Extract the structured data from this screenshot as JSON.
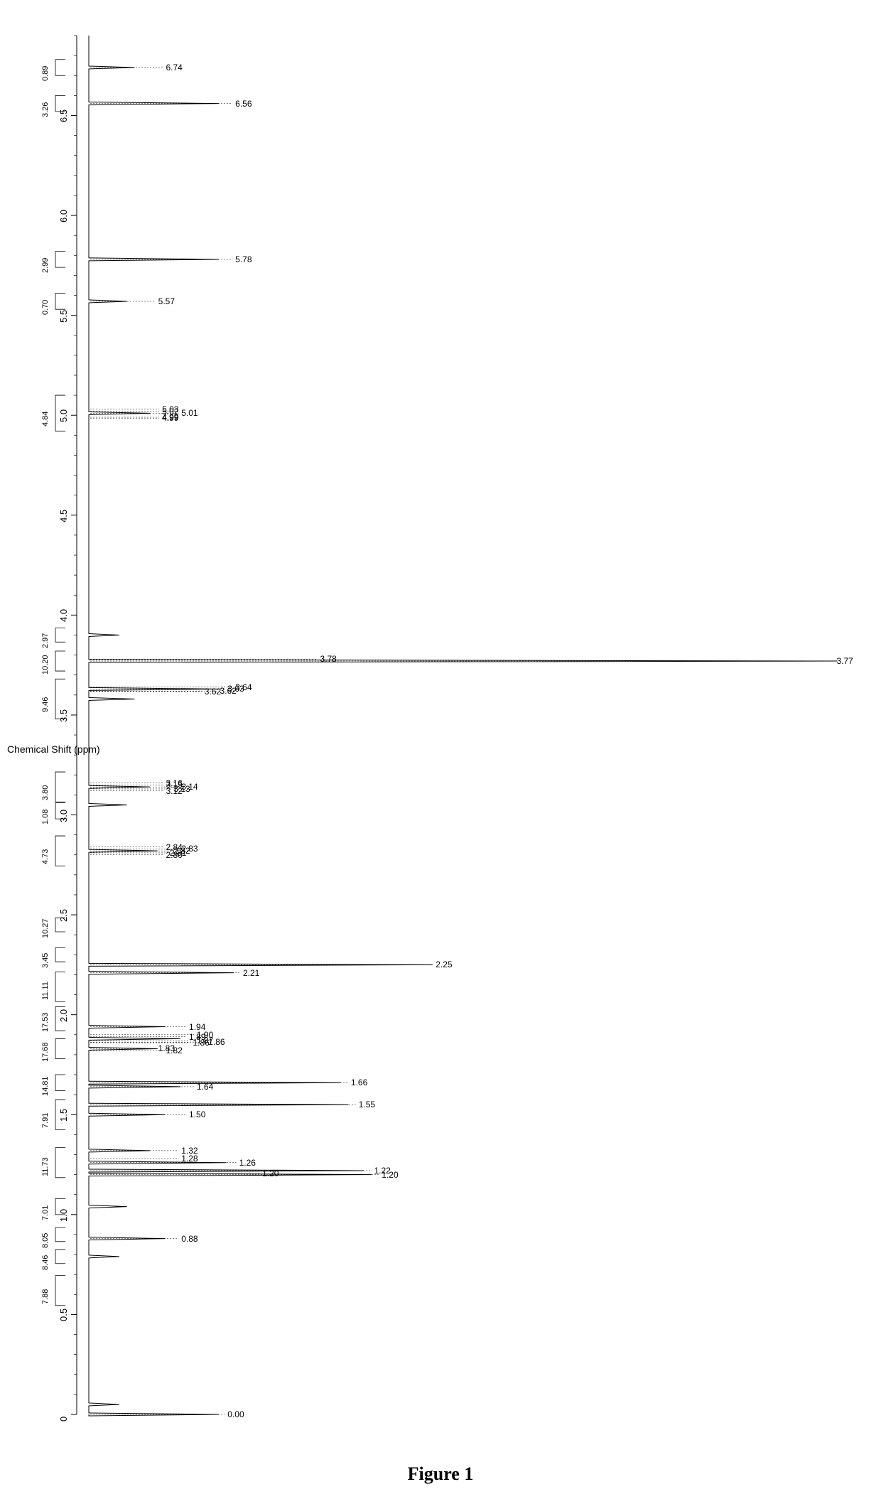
{
  "figure_caption": "Figure 1",
  "axis": {
    "label": "Chemical Shift (ppm)",
    "min": 0,
    "max": 6.9,
    "major_step": 0.5,
    "ticks": [
      0,
      0.5,
      1.0,
      1.5,
      2.0,
      2.5,
      3.0,
      3.5,
      4.0,
      4.5,
      5.0,
      5.5,
      6.0,
      6.5
    ],
    "color": "#000000"
  },
  "style": {
    "background": "#ffffff",
    "line_color": "#000000",
    "text_color": "#000000",
    "integral_fontsize": 11,
    "peaklabel_fontsize": 12,
    "axis_fontsize": 13,
    "caption_fontsize": 26
  },
  "peak_labels": [
    {
      "ppm": 6.74,
      "text": "6.74",
      "rel_x": 0.1
    },
    {
      "ppm": 6.56,
      "text": "6.56",
      "rel_x": 0.19
    },
    {
      "ppm": 5.78,
      "text": "5.78",
      "rel_x": 0.19
    },
    {
      "ppm": 5.57,
      "text": "5.57",
      "rel_x": 0.09
    },
    {
      "ppm": 5.03,
      "text": "5.03",
      "rel_x": 0.095
    },
    {
      "ppm": 5.02,
      "text": "5.02",
      "rel_x": 0.095
    },
    {
      "ppm": 5.01,
      "text": "5.01",
      "rel_x": 0.12
    },
    {
      "ppm": 4.99,
      "text": "4.99",
      "rel_x": 0.095
    },
    {
      "ppm": 4.985,
      "text": "4.99",
      "rel_x": 0.095
    },
    {
      "ppm": 3.78,
      "text": "3.78",
      "rel_x": 0.3
    },
    {
      "ppm": 3.77,
      "text": "3.77",
      "rel_x": 0.97
    },
    {
      "ppm": 3.64,
      "text": "3.64",
      "rel_x": 0.19
    },
    {
      "ppm": 3.63,
      "text": "3.63",
      "rel_x": 0.18
    },
    {
      "ppm": 3.62,
      "text": "3.62",
      "rel_x": 0.17
    },
    {
      "ppm": 3.618,
      "text": "3.62",
      "rel_x": 0.15
    },
    {
      "ppm": 3.16,
      "text": "3.16",
      "rel_x": 0.1
    },
    {
      "ppm": 3.15,
      "text": "3.15",
      "rel_x": 0.1
    },
    {
      "ppm": 3.14,
      "text": "3.14",
      "rel_x": 0.12
    },
    {
      "ppm": 3.13,
      "text": "3.13",
      "rel_x": 0.11
    },
    {
      "ppm": 3.12,
      "text": "3.12",
      "rel_x": 0.1
    },
    {
      "ppm": 2.84,
      "text": "2.84",
      "rel_x": 0.1
    },
    {
      "ppm": 2.83,
      "text": "2.83",
      "rel_x": 0.12
    },
    {
      "ppm": 2.82,
      "text": "2.82",
      "rel_x": 0.11
    },
    {
      "ppm": 2.81,
      "text": "2.81",
      "rel_x": 0.105
    },
    {
      "ppm": 2.8,
      "text": "2.80",
      "rel_x": 0.1
    },
    {
      "ppm": 2.25,
      "text": "2.25",
      "rel_x": 0.45
    },
    {
      "ppm": 2.21,
      "text": "2.21",
      "rel_x": 0.2
    },
    {
      "ppm": 1.94,
      "text": "1.94",
      "rel_x": 0.13
    },
    {
      "ppm": 1.9,
      "text": "1.90",
      "rel_x": 0.14
    },
    {
      "ppm": 1.89,
      "text": "1.89",
      "rel_x": 0.13
    },
    {
      "ppm": 1.87,
      "text": "1.87",
      "rel_x": 0.14
    },
    {
      "ppm": 1.863,
      "text": "1.86",
      "rel_x": 0.155
    },
    {
      "ppm": 1.86,
      "text": "1.86",
      "rel_x": 0.135
    },
    {
      "ppm": 1.83,
      "text": "1.83",
      "rel_x": 0.09
    },
    {
      "ppm": 1.82,
      "text": "1.82",
      "rel_x": 0.1
    },
    {
      "ppm": 1.66,
      "text": "1.66",
      "rel_x": 0.34
    },
    {
      "ppm": 1.64,
      "text": "1.64",
      "rel_x": 0.14
    },
    {
      "ppm": 1.55,
      "text": "1.55",
      "rel_x": 0.35
    },
    {
      "ppm": 1.5,
      "text": "1.50",
      "rel_x": 0.13
    },
    {
      "ppm": 1.32,
      "text": "1.32",
      "rel_x": 0.12
    },
    {
      "ppm": 1.28,
      "text": "1.28",
      "rel_x": 0.12
    },
    {
      "ppm": 1.26,
      "text": "1.26",
      "rel_x": 0.195
    },
    {
      "ppm": 1.22,
      "text": "1.22",
      "rel_x": 0.37
    },
    {
      "ppm": 1.205,
      "text": "1.20",
      "rel_x": 0.225
    },
    {
      "ppm": 1.2,
      "text": "1.20",
      "rel_x": 0.38
    },
    {
      "ppm": 0.88,
      "text": "0.88",
      "rel_x": 0.12
    },
    {
      "ppm": 0.0,
      "text": "0.00",
      "rel_x": 0.18
    }
  ],
  "integrals": [
    {
      "ppm": 6.74,
      "value": "0.89",
      "width": 0.08
    },
    {
      "ppm": 6.56,
      "value": "3.26",
      "width": 0.08
    },
    {
      "ppm": 5.78,
      "value": "2.99",
      "width": 0.08
    },
    {
      "ppm": 5.57,
      "value": "0.70",
      "width": 0.08
    },
    {
      "ppm": 5.01,
      "value": "4.84",
      "width": 0.18
    },
    {
      "ppm": 3.9,
      "value": "2.97",
      "width": 0.07
    },
    {
      "ppm": 3.77,
      "value": "10.20",
      "width": 0.1
    },
    {
      "ppm": 3.58,
      "value": "9.46",
      "width": 0.2
    },
    {
      "ppm": 3.14,
      "value": "3.80",
      "width": 0.15
    },
    {
      "ppm": 3.02,
      "value": "1.08",
      "width": 0.08
    },
    {
      "ppm": 2.82,
      "value": "4.73",
      "width": 0.15
    },
    {
      "ppm": 2.45,
      "value": "10.27",
      "width": 0.07
    },
    {
      "ppm": 2.3,
      "value": "3.45",
      "width": 0.07
    },
    {
      "ppm": 2.14,
      "value": "11.11",
      "width": 0.15
    },
    {
      "ppm": 1.98,
      "value": "17.53",
      "width": 0.12
    },
    {
      "ppm": 1.83,
      "value": "17.68",
      "width": 0.1
    },
    {
      "ppm": 1.66,
      "value": "14.81",
      "width": 0.08
    },
    {
      "ppm": 1.5,
      "value": "7.91",
      "width": 0.15
    },
    {
      "ppm": 1.26,
      "value": "11.73",
      "width": 0.15
    },
    {
      "ppm": 1.04,
      "value": "7.01",
      "width": 0.08
    },
    {
      "ppm": 0.9,
      "value": "8.05",
      "width": 0.07
    },
    {
      "ppm": 0.79,
      "value": "8.46",
      "width": 0.07
    },
    {
      "ppm": 0.62,
      "value": "7.88",
      "width": 0.15
    }
  ],
  "spectrum_peaks": [
    {
      "ppm": 6.74,
      "height": 0.06
    },
    {
      "ppm": 6.56,
      "height": 0.17
    },
    {
      "ppm": 5.78,
      "height": 0.17
    },
    {
      "ppm": 5.57,
      "height": 0.05
    },
    {
      "ppm": 5.01,
      "height": 0.08
    },
    {
      "ppm": 3.9,
      "height": 0.04
    },
    {
      "ppm": 3.77,
      "height": 0.98
    },
    {
      "ppm": 3.63,
      "height": 0.17
    },
    {
      "ppm": 3.58,
      "height": 0.06
    },
    {
      "ppm": 3.14,
      "height": 0.08
    },
    {
      "ppm": 3.05,
      "height": 0.05
    },
    {
      "ppm": 2.82,
      "height": 0.09
    },
    {
      "ppm": 2.25,
      "height": 0.45
    },
    {
      "ppm": 2.21,
      "height": 0.19
    },
    {
      "ppm": 1.94,
      "height": 0.1
    },
    {
      "ppm": 1.88,
      "height": 0.12
    },
    {
      "ppm": 1.83,
      "height": 0.09
    },
    {
      "ppm": 1.66,
      "height": 0.33
    },
    {
      "ppm": 1.64,
      "height": 0.12
    },
    {
      "ppm": 1.55,
      "height": 0.34
    },
    {
      "ppm": 1.5,
      "height": 0.1
    },
    {
      "ppm": 1.32,
      "height": 0.08
    },
    {
      "ppm": 1.26,
      "height": 0.18
    },
    {
      "ppm": 1.22,
      "height": 0.36
    },
    {
      "ppm": 1.2,
      "height": 0.37
    },
    {
      "ppm": 1.04,
      "height": 0.05
    },
    {
      "ppm": 0.88,
      "height": 0.1
    },
    {
      "ppm": 0.79,
      "height": 0.04
    },
    {
      "ppm": 0.05,
      "height": 0.04
    },
    {
      "ppm": 0.0,
      "height": 0.17
    }
  ]
}
